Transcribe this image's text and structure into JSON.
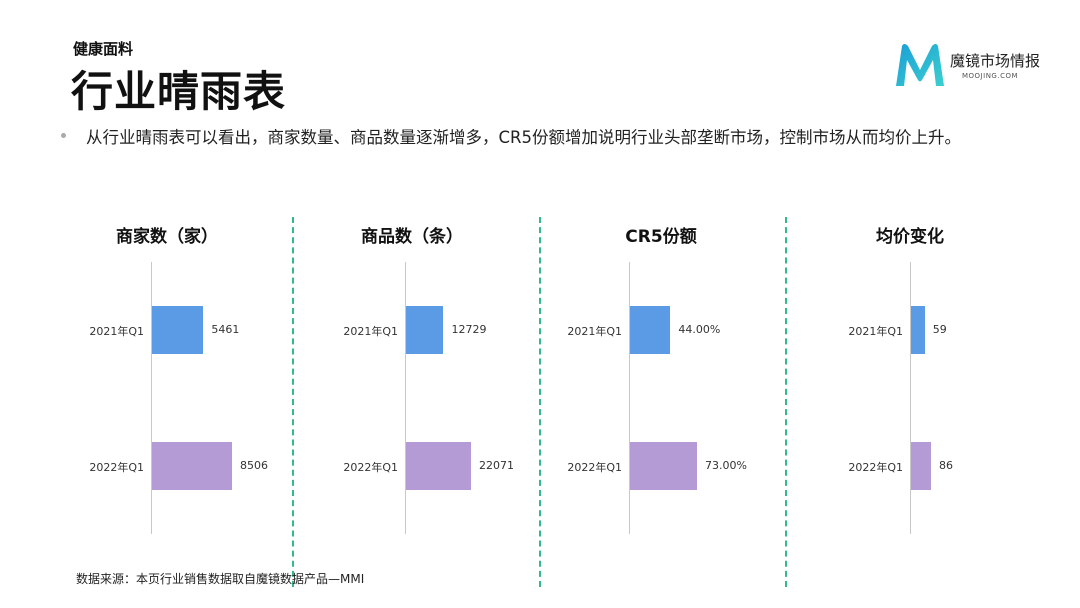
{
  "header": {
    "subtitle": "健康面料",
    "title": "行业晴雨表"
  },
  "logo": {
    "name": "魔镜市场情报",
    "sub": "MOOJING.COM",
    "colors": [
      "#1a9fd6",
      "#3ccfcf"
    ]
  },
  "bullet": "从行业晴雨表可以看出，商家数量、商品数量逐渐增多，CR5份额增加说明行业头部垄断市场，控制市场从而均价上升。",
  "source": "数据来源：本页行业销售数据取自魔镜数据产品—MMI",
  "colors": {
    "q2021": "#5b9be6",
    "q2022": "#b59bd5",
    "divider": "#33b98e"
  },
  "chart_data": [
    {
      "type": "bar",
      "title": "商家数（家）",
      "categories": [
        "2021年Q1",
        "2022年Q1"
      ],
      "values": [
        5461,
        8506
      ],
      "labels": [
        "5461",
        "8506"
      ]
    },
    {
      "type": "bar",
      "title": "商品数（条）",
      "categories": [
        "2021年Q1",
        "2022年Q1"
      ],
      "values": [
        12729,
        22071
      ],
      "labels": [
        "12729",
        "22071"
      ]
    },
    {
      "type": "bar",
      "title": "CR5份额",
      "categories": [
        "2021年Q1",
        "2022年Q1"
      ],
      "values": [
        44.0,
        73.0
      ],
      "labels": [
        "44.00%",
        "73.00%"
      ]
    },
    {
      "type": "bar",
      "title": "均价变化",
      "categories": [
        "2021年Q1",
        "2022年Q1"
      ],
      "values": [
        59,
        86
      ],
      "labels": [
        "59",
        "86"
      ]
    }
  ]
}
